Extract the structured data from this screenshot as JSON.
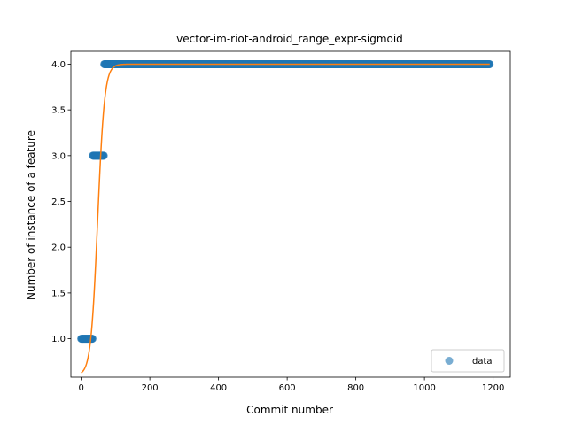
{
  "chart_data": {
    "type": "scatter",
    "title": "vector-im-riot-android_range_expr-sigmoid",
    "xlabel": "Commit number",
    "ylabel": "Number of instance of a feature",
    "xlim": [
      -30,
      1250
    ],
    "ylim": [
      0.58,
      4.14
    ],
    "xticks": [
      0,
      200,
      400,
      600,
      800,
      1000,
      1200
    ],
    "yticks": [
      1.0,
      1.5,
      2.0,
      2.5,
      3.0,
      3.5,
      4.0
    ],
    "xtick_labels": [
      "0",
      "200",
      "400",
      "600",
      "800",
      "1000",
      "1200"
    ],
    "ytick_labels": [
      "1.0",
      "1.5",
      "2.0",
      "2.5",
      "3.0",
      "3.5",
      "4.0"
    ],
    "grid": false,
    "legend_position": "lower-right",
    "series": [
      {
        "name": "data",
        "kind": "scatter",
        "color": "#1f77b4",
        "segments": [
          {
            "y": 1.0,
            "x_start": 0,
            "x_end": 33
          },
          {
            "y": 3.0,
            "x_start": 34,
            "x_end": 66
          },
          {
            "y": 4.0,
            "x_start": 67,
            "x_end": 1190
          }
        ]
      },
      {
        "kind": "line",
        "color": "#ff7f0e",
        "sigmoid": {
          "lower": 0.6,
          "upper": 4.0,
          "midpoint": 48,
          "rate": 0.1
        },
        "x_range": [
          0,
          1190
        ]
      }
    ]
  }
}
